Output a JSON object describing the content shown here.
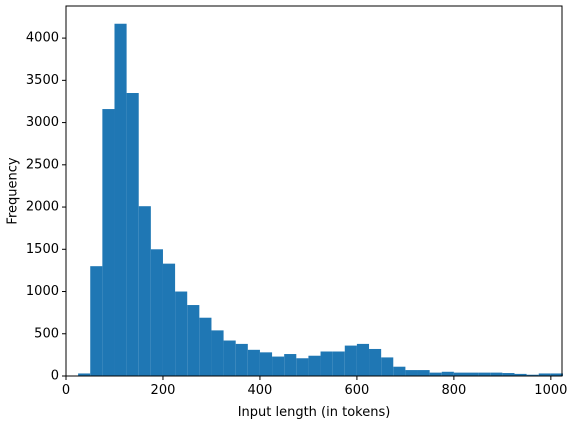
{
  "chart_data": {
    "type": "histogram",
    "xlabel": "Input length (in tokens)",
    "ylabel": "Frequency",
    "color": "#1f77b4",
    "bins": [
      25,
      50,
      75,
      100,
      125,
      150,
      175,
      200,
      225,
      250,
      275,
      300,
      325,
      350,
      375,
      400,
      425,
      450,
      475,
      500,
      525,
      550,
      575,
      600,
      625,
      650,
      675,
      700,
      725,
      750,
      775,
      800,
      825,
      850,
      875,
      900,
      925,
      950,
      975,
      1000,
      1025
    ],
    "values": [
      30,
      1300,
      3160,
      4170,
      3350,
      2010,
      1500,
      1330,
      1000,
      840,
      690,
      540,
      420,
      380,
      310,
      280,
      230,
      260,
      210,
      240,
      290,
      290,
      360,
      380,
      320,
      220,
      110,
      70,
      70,
      40,
      50,
      40,
      40,
      40,
      40,
      35,
      25,
      15,
      30,
      30
    ],
    "xlim": [
      0,
      1023
    ],
    "ylim": [
      0,
      4380
    ],
    "xticks": [
      0,
      200,
      400,
      600,
      800,
      1000
    ],
    "yticks": [
      0,
      500,
      1000,
      1500,
      2000,
      2500,
      3000,
      3500,
      4000
    ]
  }
}
